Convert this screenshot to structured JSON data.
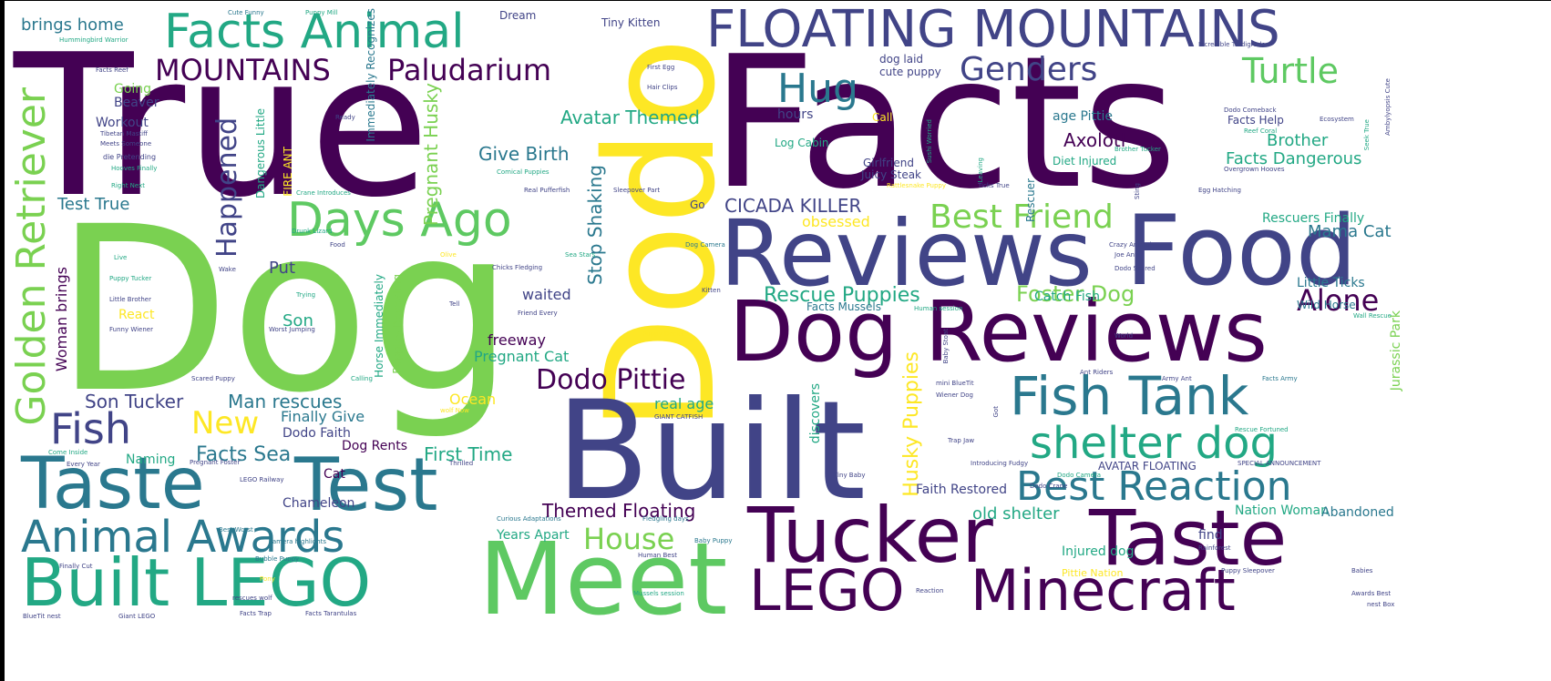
{
  "colors": {
    "c1": "#440154",
    "c2": "#414487",
    "c3": "#2a788e",
    "c4": "#22a884",
    "c5": "#7ad151",
    "c6": "#fde725",
    "c7": "#3b528b",
    "c8": "#5ec962"
  },
  "words": [
    {
      "text": "True",
      "color": "c1",
      "vertical": false
    },
    {
      "text": "Facts",
      "color": "c1",
      "vertical": false
    },
    {
      "text": "Dog",
      "color": "c5",
      "vertical": false
    },
    {
      "text": "Dodo",
      "color": "c6",
      "vertical": true
    },
    {
      "text": "Built",
      "color": "c2",
      "vertical": false
    },
    {
      "text": "Reviews",
      "color": "c2",
      "vertical": false
    },
    {
      "text": "Food",
      "color": "c2",
      "vertical": false
    },
    {
      "text": "Dog Reviews",
      "color": "c1",
      "vertical": false
    },
    {
      "text": "Tucker",
      "color": "c1",
      "vertical": false
    },
    {
      "text": "Taste",
      "color": "c1",
      "vertical": false
    },
    {
      "text": "Meet",
      "color": "c8",
      "vertical": false
    },
    {
      "text": "Taste",
      "color": "c3",
      "vertical": false
    },
    {
      "text": "Test",
      "color": "c3",
      "vertical": false
    },
    {
      "text": "Built LEGO",
      "color": "c4",
      "vertical": false
    },
    {
      "text": "LEGO",
      "color": "c1",
      "vertical": false
    },
    {
      "text": "Minecraft",
      "color": "c1",
      "vertical": false
    },
    {
      "text": "FLOATING MOUNTAINS",
      "color": "c2",
      "vertical": false
    },
    {
      "text": "Facts Animal",
      "color": "c4",
      "vertical": false
    },
    {
      "text": "Animal Awards",
      "color": "c3",
      "vertical": false
    },
    {
      "text": "Fish Tank",
      "color": "c3",
      "vertical": false
    },
    {
      "text": "shelter dog",
      "color": "c4",
      "vertical": false
    },
    {
      "text": "Best Reaction",
      "color": "c3",
      "vertical": false
    },
    {
      "text": "Days Ago",
      "color": "c8",
      "vertical": false
    },
    {
      "text": "Fish",
      "color": "c2",
      "vertical": false
    },
    {
      "text": "Golden Retriever",
      "color": "c5",
      "vertical": true
    },
    {
      "text": "MOUNTAINS",
      "color": "c1",
      "vertical": false
    },
    {
      "text": "Paludarium",
      "color": "c1",
      "vertical": false
    },
    {
      "text": "Genders",
      "color": "c2",
      "vertical": false
    },
    {
      "text": "Turtle",
      "color": "c8",
      "vertical": false
    },
    {
      "text": "Hug",
      "color": "c3",
      "vertical": false
    },
    {
      "text": "Best Friend",
      "color": "c5",
      "vertical": false
    },
    {
      "text": "Dodo Pittie",
      "color": "c1",
      "vertical": false
    },
    {
      "text": "New",
      "color": "c6",
      "vertical": false
    },
    {
      "text": "Alone",
      "color": "c1",
      "vertical": false
    },
    {
      "text": "House",
      "color": "c5",
      "vertical": false
    },
    {
      "text": "Happened",
      "color": "c2",
      "vertical": true
    },
    {
      "text": "Rescue Puppies",
      "color": "c4",
      "vertical": false
    },
    {
      "text": "Foster Dog",
      "color": "c5",
      "vertical": false
    },
    {
      "text": "Avatar Themed",
      "color": "c4",
      "vertical": false
    },
    {
      "text": "Axolotl",
      "color": "c1",
      "vertical": false
    },
    {
      "text": "Give Birth",
      "color": "c3",
      "vertical": false
    },
    {
      "text": "Pregnant Husky",
      "color": "c5",
      "vertical": true
    },
    {
      "text": "Stop Shaking",
      "color": "c3",
      "vertical": true
    },
    {
      "text": "CICADA KILLER",
      "color": "c2",
      "vertical": false
    },
    {
      "text": "Mama Cat",
      "color": "c3",
      "vertical": false
    },
    {
      "text": "Facts Dangerous",
      "color": "c4",
      "vertical": false
    },
    {
      "text": "Brother",
      "color": "c4",
      "vertical": false
    },
    {
      "text": "Son Tucker",
      "color": "c2",
      "vertical": false
    },
    {
      "text": "Man rescues",
      "color": "c3",
      "vertical": false
    },
    {
      "text": "Facts Sea",
      "color": "c3",
      "vertical": false
    },
    {
      "text": "Themed Floating",
      "color": "c1",
      "vertical": false
    },
    {
      "text": "Husky Puppies",
      "color": "c6",
      "vertical": true
    },
    {
      "text": "First Time",
      "color": "c4",
      "vertical": false
    },
    {
      "text": "Test True",
      "color": "c3",
      "vertical": false
    },
    {
      "text": "brings home",
      "color": "c3",
      "vertical": false
    },
    {
      "text": "Woman brings",
      "color": "c1",
      "vertical": true
    },
    {
      "text": "Workout",
      "color": "c2",
      "vertical": false
    },
    {
      "text": "Beaver",
      "color": "c2",
      "vertical": false
    },
    {
      "text": "Going",
      "color": "c5",
      "vertical": false
    },
    {
      "text": "Son",
      "color": "c4",
      "vertical": false
    },
    {
      "text": "Put",
      "color": "c2",
      "vertical": false
    },
    {
      "text": "React",
      "color": "c6",
      "vertical": false
    },
    {
      "text": "waited",
      "color": "c2",
      "vertical": false
    },
    {
      "text": "freeway",
      "color": "c1",
      "vertical": false
    },
    {
      "text": "Pregnant Cat",
      "color": "c4",
      "vertical": false
    },
    {
      "text": "real age",
      "color": "c4",
      "vertical": false
    },
    {
      "text": "Finally Give",
      "color": "c3",
      "vertical": false
    },
    {
      "text": "Dodo Faith",
      "color": "c2",
      "vertical": false
    },
    {
      "text": "Dog Rents",
      "color": "c1",
      "vertical": false
    },
    {
      "text": "Naming",
      "color": "c4",
      "vertical": false
    },
    {
      "text": "Cat",
      "color": "c1",
      "vertical": false
    },
    {
      "text": "Chameleon",
      "color": "c2",
      "vertical": false
    },
    {
      "text": "Years Apart",
      "color": "c4",
      "vertical": false
    },
    {
      "text": "Ocean",
      "color": "c6",
      "vertical": false
    },
    {
      "text": "old shelter",
      "color": "c4",
      "vertical": false
    },
    {
      "text": "Nation Woman",
      "color": "c4",
      "vertical": false
    },
    {
      "text": "Abandoned",
      "color": "c3",
      "vertical": false
    },
    {
      "text": "Injured dog",
      "color": "c4",
      "vertical": false
    },
    {
      "text": "Faith Restored",
      "color": "c2",
      "vertical": false
    },
    {
      "text": "find",
      "color": "c2",
      "vertical": false
    },
    {
      "text": "AVATAR FLOATING",
      "color": "c2",
      "vertical": false
    },
    {
      "text": "obsessed",
      "color": "c6",
      "vertical": false
    },
    {
      "text": "Rescuers Finally",
      "color": "c4",
      "vertical": false
    },
    {
      "text": "Little Ticks",
      "color": "c3",
      "vertical": false
    },
    {
      "text": "Wild Horse",
      "color": "c3",
      "vertical": false
    },
    {
      "text": "Jurassic Park",
      "color": "c5",
      "vertical": true
    },
    {
      "text": "Catch Fish",
      "color": "c4",
      "vertical": false
    },
    {
      "text": "Facts Mussels",
      "color": "c3",
      "vertical": false
    },
    {
      "text": "Girlfriend",
      "color": "c2",
      "vertical": false
    },
    {
      "text": "Juicy Steak",
      "color": "c2",
      "vertical": false
    },
    {
      "text": "Log Cabin",
      "color": "c4",
      "vertical": false
    },
    {
      "text": "Diet Injured",
      "color": "c4",
      "vertical": false
    },
    {
      "text": "age Pittie",
      "color": "c3",
      "vertical": false
    },
    {
      "text": "Facts Help",
      "color": "c2",
      "vertical": false
    },
    {
      "text": "dog laid",
      "color": "c2",
      "vertical": false
    },
    {
      "text": "cute puppy",
      "color": "c2",
      "vertical": false
    },
    {
      "text": "hours",
      "color": "c2",
      "vertical": false
    },
    {
      "text": "Call",
      "color": "c6",
      "vertical": false
    },
    {
      "text": "Tiny Kitten",
      "color": "c2",
      "vertical": false
    },
    {
      "text": "Dream",
      "color": "c2",
      "vertical": false
    },
    {
      "text": "Go",
      "color": "c2",
      "vertical": false
    },
    {
      "text": "Rescuer",
      "color": "c3",
      "vertical": true
    },
    {
      "text": "Dangerous Little",
      "color": "c4",
      "vertical": true
    },
    {
      "text": "FIRE ANT",
      "color": "c6",
      "vertical": true
    },
    {
      "text": "Horse Immediately",
      "color": "c4",
      "vertical": true
    },
    {
      "text": "Puppies Revealing",
      "color": "c5",
      "vertical": true
    },
    {
      "text": "Immediately Recognizes",
      "color": "c3",
      "vertical": true
    },
    {
      "text": "discovers",
      "color": "c4",
      "vertical": true
    },
    {
      "text": "Cute Funny",
      "color": "c3",
      "vertical": false
    },
    {
      "text": "Puppy Mill",
      "color": "c4",
      "vertical": false
    },
    {
      "text": "Hummingbird Warrior",
      "color": "c4",
      "vertical": false
    },
    {
      "text": "Tibetan Mastiff",
      "color": "c2",
      "vertical": false
    },
    {
      "text": "Meets Someone",
      "color": "c2",
      "vertical": false
    },
    {
      "text": "die Pretending",
      "color": "c2",
      "vertical": false
    },
    {
      "text": "Hooves Finally",
      "color": "c4",
      "vertical": false
    },
    {
      "text": "Right Next",
      "color": "c4",
      "vertical": false
    },
    {
      "text": "Facts Reef",
      "color": "c2",
      "vertical": false
    },
    {
      "text": "Live",
      "color": "c4",
      "vertical": false
    },
    {
      "text": "Puppy Tucker",
      "color": "c4",
      "vertical": false
    },
    {
      "text": "Little Brother",
      "color": "c2",
      "vertical": false
    },
    {
      "text": "Funny Wiener",
      "color": "c2",
      "vertical": false
    },
    {
      "text": "Scared Puppy",
      "color": "c2",
      "vertical": false
    },
    {
      "text": "Come Inside",
      "color": "c4",
      "vertical": false
    },
    {
      "text": "Every Year",
      "color": "c2",
      "vertical": false
    },
    {
      "text": "Pregnant Foster",
      "color": "c2",
      "vertical": false
    },
    {
      "text": "Best Worst",
      "color": "c3",
      "vertical": false
    },
    {
      "text": "Bubble Puppy",
      "color": "c3",
      "vertical": false
    },
    {
      "text": "Finally Cut",
      "color": "c2",
      "vertical": false
    },
    {
      "text": "rescues wolf",
      "color": "c2",
      "vertical": false
    },
    {
      "text": "BlueTit nest",
      "color": "c2",
      "vertical": false
    },
    {
      "text": "Giant LEGO",
      "color": "c2",
      "vertical": false
    },
    {
      "text": "Facts Trap",
      "color": "c2",
      "vertical": false
    },
    {
      "text": "Facts Tarantulas",
      "color": "c2",
      "vertical": false
    },
    {
      "text": "First Egg",
      "color": "c2",
      "vertical": false
    },
    {
      "text": "Hair Clips",
      "color": "c2",
      "vertical": false
    },
    {
      "text": "Ready",
      "color": "c2",
      "vertical": false
    },
    {
      "text": "Comical Puppies",
      "color": "c4",
      "vertical": false
    },
    {
      "text": "Crane Introduces",
      "color": "c4",
      "vertical": false
    },
    {
      "text": "Real Pufferfish",
      "color": "c2",
      "vertical": false
    },
    {
      "text": "Sleepover Part",
      "color": "c2",
      "vertical": false
    },
    {
      "text": "Sea Stars",
      "color": "c4",
      "vertical": false
    },
    {
      "text": "Olive",
      "color": "c6",
      "vertical": false
    },
    {
      "text": "Chicks Fledging",
      "color": "c2",
      "vertical": false
    },
    {
      "text": "Trying",
      "color": "c4",
      "vertical": false
    },
    {
      "text": "Tell",
      "color": "c2",
      "vertical": false
    },
    {
      "text": "Friend Every",
      "color": "c2",
      "vertical": false
    },
    {
      "text": "Worst Jumping",
      "color": "c2",
      "vertical": false
    },
    {
      "text": "Puppy Decides",
      "color": "c6",
      "vertical": false
    },
    {
      "text": "Calling",
      "color": "c4",
      "vertical": false
    },
    {
      "text": "wolf Now",
      "color": "c6",
      "vertical": false
    },
    {
      "text": "GIANT CATFISH",
      "color": "c2",
      "vertical": false
    },
    {
      "text": "Thrilled",
      "color": "c2",
      "vertical": false
    },
    {
      "text": "LEGO Railway",
      "color": "c2",
      "vertical": false
    },
    {
      "text": "camera highlights",
      "color": "c3",
      "vertical": false
    },
    {
      "text": "Curious Adaptations",
      "color": "c3",
      "vertical": false
    },
    {
      "text": "Fledgling days",
      "color": "c3",
      "vertical": false
    },
    {
      "text": "Baby Puppy",
      "color": "c3",
      "vertical": false
    },
    {
      "text": "Human Best",
      "color": "c2",
      "vertical": false
    },
    {
      "text": "Pony",
      "color": "c6",
      "vertical": false
    },
    {
      "text": "Tiny Baby",
      "color": "c2",
      "vertical": false
    },
    {
      "text": "Introducing Fudgy",
      "color": "c2",
      "vertical": false
    },
    {
      "text": "Dodo Crane",
      "color": "c2",
      "vertical": false
    },
    {
      "text": "Rainforest",
      "color": "c2",
      "vertical": false
    },
    {
      "text": "Pittie Nation",
      "color": "c6",
      "vertical": false
    },
    {
      "text": "Puppy Sleepover",
      "color": "c2",
      "vertical": false
    },
    {
      "text": "Babies",
      "color": "c2",
      "vertical": false
    },
    {
      "text": "Awards Best",
      "color": "c2",
      "vertical": false
    },
    {
      "text": "nest Box",
      "color": "c2",
      "vertical": false
    },
    {
      "text": "SPECIAL ANNOUNCEMENT",
      "color": "c2",
      "vertical": false
    },
    {
      "text": "Rescue Fortuned",
      "color": "c4",
      "vertical": false
    },
    {
      "text": "Facts Army",
      "color": "c3",
      "vertical": false
    },
    {
      "text": "Army Ant",
      "color": "c2",
      "vertical": false
    },
    {
      "text": "Ant Riders",
      "color": "c2",
      "vertical": false
    },
    {
      "text": "mini BlueTit",
      "color": "c2",
      "vertical": false
    },
    {
      "text": "Wiener Dog",
      "color": "c2",
      "vertical": false
    },
    {
      "text": "Baby Stoat",
      "color": "c2",
      "vertical": true
    },
    {
      "text": "Reaction",
      "color": "c2",
      "vertical": false
    },
    {
      "text": "Wall Rescue",
      "color": "c4",
      "vertical": false
    },
    {
      "text": "Dodo Scared",
      "color": "c2",
      "vertical": false
    },
    {
      "text": "Joe Anti",
      "color": "c2",
      "vertical": false
    },
    {
      "text": "Crazy Animal",
      "color": "c2",
      "vertical": false
    },
    {
      "text": "Kitten",
      "color": "c2",
      "vertical": false
    },
    {
      "text": "Wake",
      "color": "c2",
      "vertical": false
    },
    {
      "text": "Food",
      "color": "c2",
      "vertical": false
    },
    {
      "text": "Drunk Lizard",
      "color": "c4",
      "vertical": false
    },
    {
      "text": "Dog Camera",
      "color": "c3",
      "vertical": false
    },
    {
      "text": "Overgrown Hooves",
      "color": "c2",
      "vertical": false
    },
    {
      "text": "Dodo Comeback",
      "color": "c2",
      "vertical": false
    },
    {
      "text": "Reef Coral",
      "color": "c4",
      "vertical": false
    },
    {
      "text": "Ecosystem",
      "color": "c2",
      "vertical": false
    },
    {
      "text": "Incredible Tardigrade",
      "color": "c2",
      "vertical": false
    },
    {
      "text": "Brother Tucker",
      "color": "c4",
      "vertical": false
    },
    {
      "text": "Rattlesnake Puppy",
      "color": "c6",
      "vertical": false
    },
    {
      "text": "Ticks True",
      "color": "c2",
      "vertical": false
    },
    {
      "text": "Egg Hatching",
      "color": "c2",
      "vertical": false
    },
    {
      "text": "Sushi Worried",
      "color": "c4",
      "vertical": true
    },
    {
      "text": "Leaving",
      "color": "c4",
      "vertical": true
    },
    {
      "text": "Sting",
      "color": "c2",
      "vertical": true
    },
    {
      "text": "Seek True",
      "color": "c4",
      "vertical": true
    },
    {
      "text": "Ambylyopsis Cute",
      "color": "c2",
      "vertical": true
    },
    {
      "text": "Trap Jaw",
      "color": "c2",
      "vertical": false
    },
    {
      "text": "World",
      "color": "c2",
      "vertical": false
    },
    {
      "text": "Got",
      "color": "c2",
      "vertical": true
    },
    {
      "text": "Dodo Camera",
      "color": "c4",
      "vertical": false
    },
    {
      "text": "Human session",
      "color": "c4",
      "vertical": false
    },
    {
      "text": "Mussels session",
      "color": "c4",
      "vertical": false
    }
  ]
}
